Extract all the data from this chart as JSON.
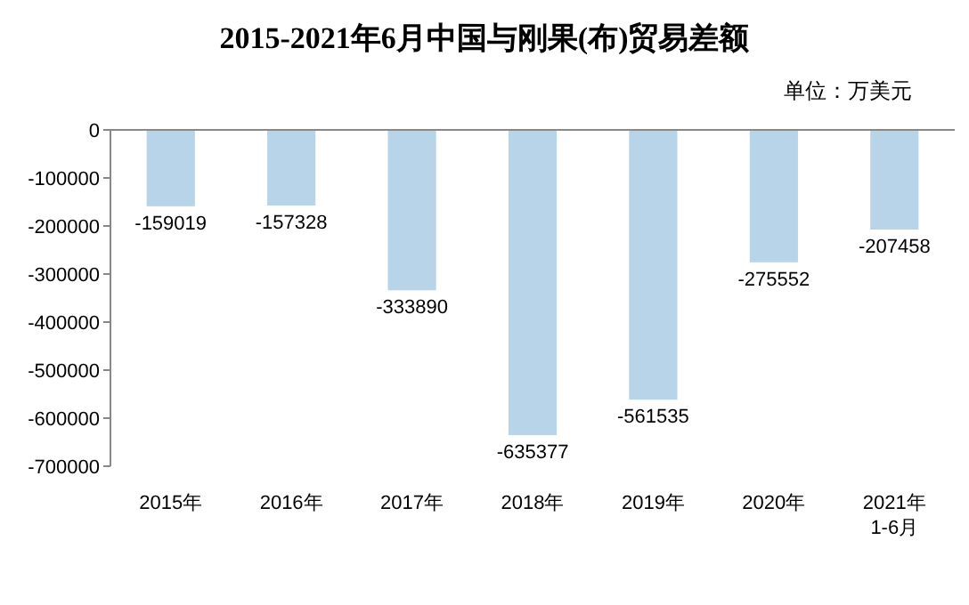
{
  "chart_data": {
    "type": "bar",
    "title": "2015-2021年6月中国与刚果(布)贸易差额",
    "annotations": [
      "单位：万美元"
    ],
    "categories": [
      "2015年",
      "2016年",
      "2017年",
      "2018年",
      "2019年",
      "2020年",
      "2021年\n1-6月"
    ],
    "values": [
      -159019,
      -157328,
      -333890,
      -635377,
      -561535,
      -275552,
      -207458
    ],
    "color": "#b8d4e8",
    "ylim": [
      -700000,
      0
    ],
    "yticks": [
      -700000,
      -600000,
      -500000,
      -400000,
      -300000,
      -200000,
      -100000,
      0
    ],
    "data_labels": true
  }
}
